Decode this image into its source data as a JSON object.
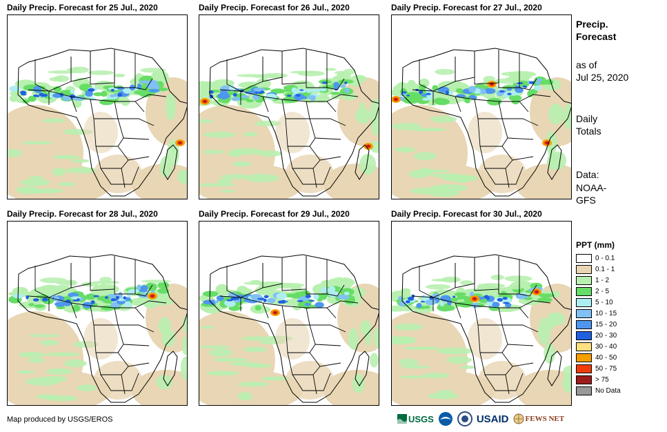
{
  "panels": [
    {
      "title": "Daily Precip. Forecast for 25 Jul., 2020",
      "variant": 0
    },
    {
      "title": "Daily Precip. Forecast for 26 Jul., 2020",
      "variant": 1
    },
    {
      "title": "Daily Precip. Forecast for 27 Jul., 2020",
      "variant": 2
    },
    {
      "title": "Daily Precip. Forecast for 28 Jul., 2020",
      "variant": 3
    },
    {
      "title": "Daily Precip. Forecast for 29 Jul., 2020",
      "variant": 4
    },
    {
      "title": "Daily Precip. Forecast for 30 Jul., 2020",
      "variant": 5
    }
  ],
  "sidebar": {
    "title_line1": "Precip.",
    "title_line2": "Forecast",
    "asof_line1": "as of",
    "asof_line2": "Jul 25, 2020",
    "totals_line1": "Daily",
    "totals_line2": "Totals",
    "data_line1": "Data:",
    "data_line2": "NOAA-",
    "data_line3": "GFS"
  },
  "legend": {
    "title": "PPT (mm)",
    "items": [
      {
        "label": "0 - 0.1",
        "color": "#ffffff"
      },
      {
        "label": "0.1 - 1",
        "color": "#e8d6b4"
      },
      {
        "label": "1 - 2",
        "color": "#b8f0b0"
      },
      {
        "label": "2 - 5",
        "color": "#66dd66"
      },
      {
        "label": "5 - 10",
        "color": "#aeeef0"
      },
      {
        "label": "10 - 15",
        "color": "#80c0f4"
      },
      {
        "label": "15 - 20",
        "color": "#4e96ee"
      },
      {
        "label": "20 - 30",
        "color": "#2060e0"
      },
      {
        "label": "30 - 40",
        "color": "#fce080"
      },
      {
        "label": "40 - 50",
        "color": "#f5a000"
      },
      {
        "label": "50 - 75",
        "color": "#f03c0a"
      },
      {
        "label": "> 75",
        "color": "#9c1c1c"
      },
      {
        "label": "No Data",
        "color": "#999999"
      }
    ]
  },
  "credit": "Map produced by USGS/EROS",
  "logos": {
    "usgs": "USGS",
    "usaid": "USAID",
    "fewsnet": "FEWS NET"
  }
}
